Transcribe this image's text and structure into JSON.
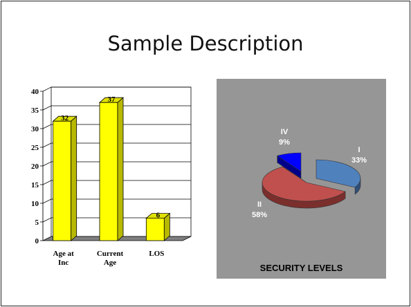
{
  "slide": {
    "title": "Sample Description"
  },
  "chart_data": [
    {
      "type": "bar",
      "categories": [
        "Age at Inc",
        "Current Age",
        "LOS"
      ],
      "category_lines": [
        [
          "Age at",
          "Inc"
        ],
        [
          "Current",
          "Age"
        ],
        [
          "LOS"
        ]
      ],
      "values": [
        32,
        37,
        6
      ],
      "data_labels": [
        "32",
        "37",
        "6"
      ],
      "ylim": [
        0,
        40
      ],
      "yticks": [
        0,
        5,
        10,
        15,
        20,
        25,
        30,
        35,
        40
      ],
      "grid": true,
      "bar_color": "#ffff00",
      "bar_side_color": "#b8b800",
      "bar_top_color": "#e0e000",
      "title": "",
      "xlabel": "",
      "ylabel": ""
    },
    {
      "type": "pie",
      "title": "SECURITY LEVELS",
      "background": "#969696",
      "slices": [
        {
          "label": "I",
          "value": 33,
          "pct_label": "33%",
          "color": "#4f81bd",
          "side_color": "#2f4f78"
        },
        {
          "label": "II",
          "value": 58,
          "pct_label": "58%",
          "color": "#c0504d",
          "side_color": "#7a2f2d"
        },
        {
          "label": "IV",
          "value": 9,
          "pct_label": "9%",
          "color": "#0000ff",
          "side_color": "#00008a"
        }
      ]
    }
  ]
}
